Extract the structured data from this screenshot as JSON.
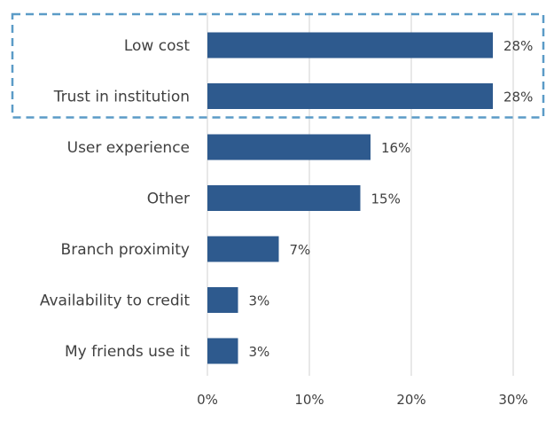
{
  "chart_data": {
    "type": "bar",
    "orientation": "horizontal",
    "categories": [
      "Low cost",
      "Trust in institution",
      "User experience",
      "Other",
      "Branch proximity",
      "Availability to credit",
      "My friends use it"
    ],
    "values": [
      28,
      28,
      16,
      15,
      7,
      3,
      3
    ],
    "value_labels": [
      "28%",
      "28%",
      "16%",
      "15%",
      "7%",
      "3%",
      "3%"
    ],
    "x_ticks": [
      "0%",
      "10%",
      "20%",
      "30%"
    ],
    "x_tick_values": [
      0,
      10,
      20,
      30
    ],
    "xlim": [
      0,
      30
    ],
    "grid": true,
    "highlighted_categories": [
      "Low cost",
      "Trust in institution"
    ],
    "title": "",
    "xlabel": "",
    "ylabel": ""
  },
  "colors": {
    "bar": "#2e5a8e",
    "grid": "#d9d9d9",
    "highlight_border": "#5b9bc7",
    "text": "#404040"
  }
}
